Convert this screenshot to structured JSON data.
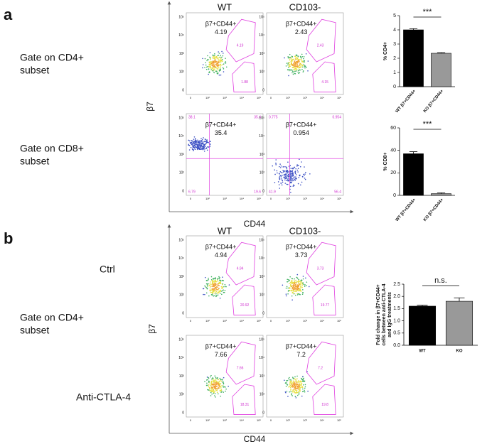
{
  "flow": {
    "tick_labels": [
      "0",
      "10²",
      "10³",
      "10⁴",
      "10⁵"
    ],
    "panels": [
      {
        "letter": "a",
        "columns": [
          "WT",
          "CD103-"
        ],
        "x_axis": "CD44",
        "y_axis": "β7",
        "rows": [
          {
            "label": [
              "Gate on CD4+",
              "subset"
            ],
            "plots": [
              {
                "population": "β7+CD44+",
                "value": "4.19",
                "gates": [
                  "4.19",
                  "1.88"
                ]
              },
              {
                "population": "β7+CD44+",
                "value": "2.43",
                "gates": [
                  "2.43",
                  "4.15"
                ]
              }
            ]
          },
          {
            "label": [
              "Gate on CD8+",
              "subset"
            ],
            "plots": [
              {
                "population": "β7+CD44+",
                "value": "35.4",
                "gates": [
                  "38.1",
                  "35.4",
                  "6.79",
                  "19.6"
                ]
              },
              {
                "population": "β7+CD44+",
                "value": "0.954",
                "gates": [
                  "0.775",
                  "0.954",
                  "41.9",
                  "56.4"
                ]
              }
            ]
          }
        ]
      },
      {
        "letter": "b",
        "columns": [
          "WT",
          "CD103-"
        ],
        "x_axis": "CD44",
        "y_axis": "β7",
        "gate_label": [
          "Gate on CD4+",
          "subset"
        ],
        "rows": [
          {
            "label": [
              "Ctrl"
            ],
            "plots": [
              {
                "population": "β7+CD44+",
                "value": "4.94",
                "gates": [
                  "4.94",
                  "20.92"
                ]
              },
              {
                "population": "β7+CD44+",
                "value": "3.73",
                "gates": [
                  "3.73",
                  "19.77"
                ]
              }
            ]
          },
          {
            "label": [
              "Anti-CTLA-4"
            ],
            "plots": [
              {
                "population": "β7+CD44+",
                "value": "7.66",
                "gates": [
                  "7.66",
                  "18.31"
                ]
              },
              {
                "population": "β7+CD44+",
                "value": "7.2",
                "gates": [
                  "7.2",
                  "19.8"
                ]
              }
            ]
          }
        ]
      }
    ]
  },
  "chart_data": [
    {
      "type": "bar",
      "ylabel": [
        "% CD4+"
      ],
      "categories": [
        "WT β7+CD44+",
        "KO β7+CD44+"
      ],
      "values": [
        4.0,
        2.35
      ],
      "errors": [
        0.08,
        0.05
      ],
      "colors": [
        "#000000",
        "#999999"
      ],
      "ylim": [
        0,
        5
      ],
      "yticks": [
        0,
        1,
        2,
        3,
        4,
        5
      ],
      "annotation": "***"
    },
    {
      "type": "bar",
      "ylabel": [
        "% CD8+"
      ],
      "categories": [
        "WT β7+CD44+",
        "KO β7+CD44+"
      ],
      "values": [
        37,
        1.5
      ],
      "errors": [
        1.8,
        0.8
      ],
      "colors": [
        "#000000",
        "#999999"
      ],
      "ylim": [
        0,
        60
      ],
      "yticks": [
        0,
        20,
        40,
        60
      ],
      "annotation": "***"
    },
    {
      "type": "bar",
      "ylabel": [
        "Fold change in β7+CD44+",
        "cells between anti-CTLA-4",
        "and IgG treatments"
      ],
      "categories": [
        "WT",
        "KO"
      ],
      "values": [
        1.6,
        1.8
      ],
      "errors": [
        0.04,
        0.14
      ],
      "colors": [
        "#000000",
        "#999999"
      ],
      "ylim": [
        0,
        2.5
      ],
      "yticks": [
        {
          "value": 0,
          "label": "0.0"
        },
        {
          "value": 0.5,
          "label": "0.5"
        },
        {
          "value": 1,
          "label": "1.0"
        },
        {
          "value": 1.5,
          "label": "1.5"
        },
        {
          "value": 2,
          "label": "2.0"
        },
        {
          "value": 2.5,
          "label": "2.5"
        }
      ],
      "annotation": "n.s."
    }
  ]
}
